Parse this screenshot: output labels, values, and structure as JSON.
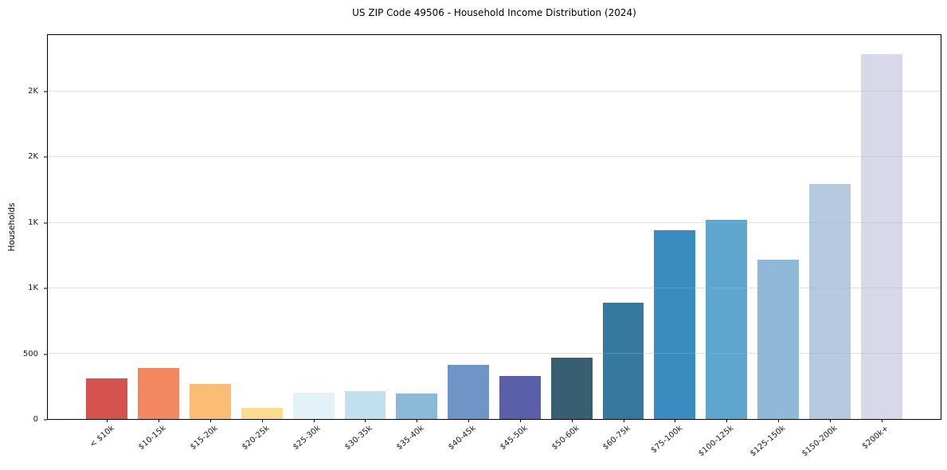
{
  "chart_data": {
    "type": "bar",
    "title": "US ZIP Code 49506 - Household Income Distribution (2024)",
    "xlabel": "",
    "ylabel": "Households",
    "categories": [
      "< $10k",
      "$10-15k",
      "$15-20k",
      "$20-25k",
      "$25-30k",
      "$30-35k",
      "$35-40k",
      "$40-45k",
      "$45-50k",
      "$50-60k",
      "$60-75k",
      "$75-100k",
      "$100-125k",
      "$125-150k",
      "$150-200k",
      "$200k+"
    ],
    "values": [
      312,
      390,
      267,
      85,
      198,
      215,
      197,
      414,
      327,
      469,
      888,
      1444,
      1519,
      1216,
      1794,
      2788
    ],
    "bar_colors": [
      "#d4534f",
      "#f3875f",
      "#fbbc74",
      "#fcdc8f",
      "#e2f2f8",
      "#c1e0ee",
      "#8bbad9",
      "#6e95c5",
      "#5a5fa9",
      "#375e71",
      "#36799e",
      "#388cbf",
      "#5ea6cd",
      "#90b8d8",
      "#b7c9e0",
      "#d8d9e8"
    ],
    "ylim": [
      0,
      2934
    ],
    "yticks": [
      {
        "value": 0,
        "label": "0"
      },
      {
        "value": 500,
        "label": "500"
      },
      {
        "value": 1000,
        "label": "1K"
      },
      {
        "value": 1500,
        "label": "1K"
      },
      {
        "value": 2000,
        "label": "2K"
      },
      {
        "value": 2500,
        "label": "2K"
      }
    ],
    "grid": "horizontal",
    "grid_color": "#b0b0b0",
    "axis_color": "#000000",
    "background_color": "#ffffff",
    "x_tick_rotation": 40,
    "legend": "none"
  }
}
